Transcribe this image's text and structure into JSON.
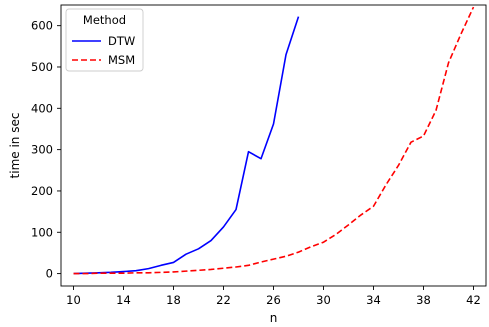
{
  "chart_data": {
    "type": "line",
    "xlabel": "n",
    "ylabel": "time in sec",
    "xlim": [
      9,
      43
    ],
    "ylim": [
      -30,
      650
    ],
    "xticks": [
      10,
      14,
      18,
      22,
      26,
      30,
      34,
      38,
      42
    ],
    "yticks": [
      0,
      100,
      200,
      300,
      400,
      500,
      600
    ],
    "grid": false,
    "legend": {
      "title": "Method",
      "placement": "top-left"
    },
    "series": [
      {
        "name": "DTW",
        "color": "#0000ff",
        "style": "solid",
        "x": [
          10,
          11,
          12,
          13,
          14,
          15,
          16,
          17,
          18,
          19,
          20,
          21,
          22,
          23,
          24,
          25,
          26,
          27,
          28
        ],
        "y": [
          0,
          1,
          2,
          3,
          5,
          7,
          12,
          20,
          27,
          47,
          60,
          80,
          113,
          155,
          295,
          278,
          362,
          530,
          622
        ]
      },
      {
        "name": "MSM",
        "color": "#ff0000",
        "style": "dashed",
        "x": [
          10,
          11,
          12,
          13,
          14,
          15,
          16,
          17,
          18,
          19,
          20,
          21,
          22,
          23,
          24,
          25,
          26,
          27,
          28,
          29,
          30,
          31,
          32,
          33,
          34,
          35,
          36,
          37,
          38,
          39,
          40,
          41,
          42
        ],
        "y": [
          0,
          0,
          1,
          1,
          1,
          2,
          2,
          3,
          4,
          6,
          8,
          10,
          13,
          16,
          20,
          28,
          35,
          42,
          52,
          65,
          76,
          95,
          118,
          142,
          163,
          215,
          262,
          318,
          333,
          395,
          510,
          580,
          645
        ]
      }
    ]
  }
}
